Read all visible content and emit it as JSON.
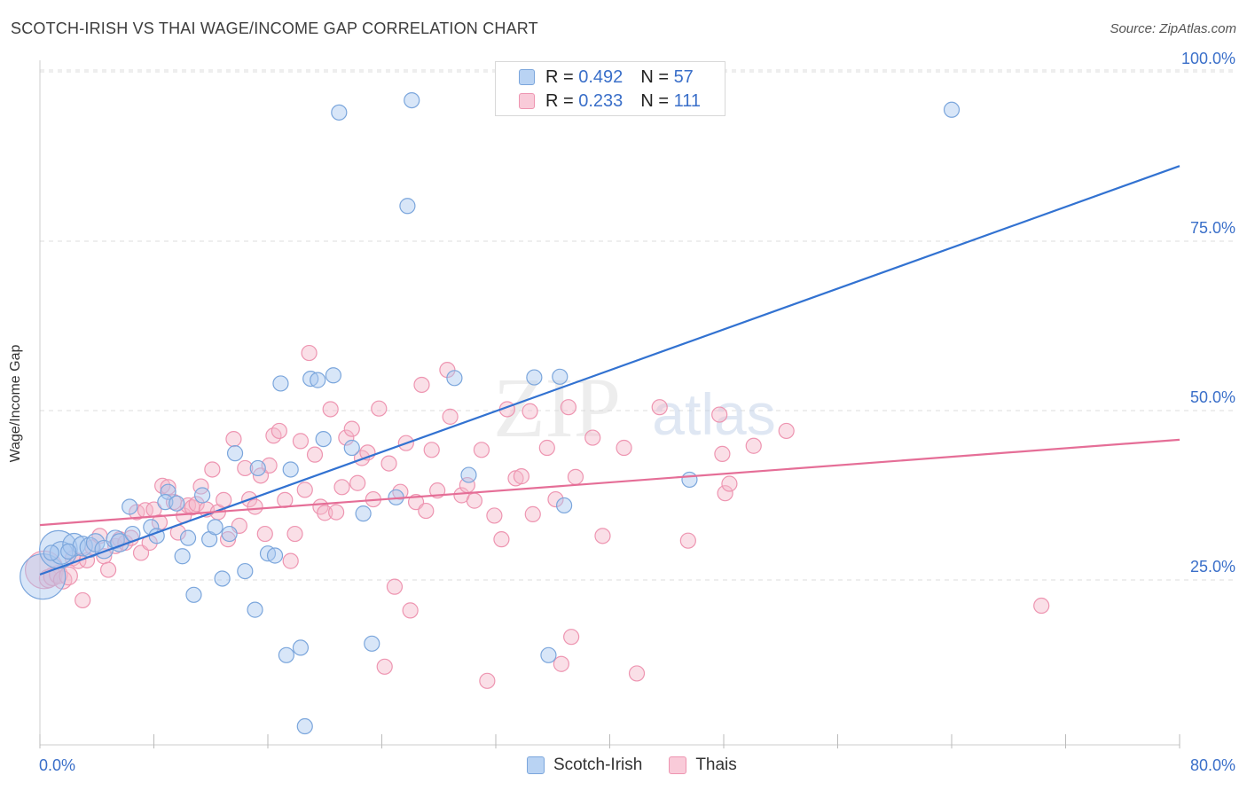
{
  "title": "SCOTCH-IRISH VS THAI WAGE/INCOME GAP CORRELATION CHART",
  "source": "Source: ZipAtlas.com",
  "colors": {
    "blue_fill": "#a9c8ef",
    "blue_stroke": "#7ba6dc",
    "blue_line": "#3272d1",
    "pink_fill": "#f5b7c9",
    "pink_stroke": "#ee95b1",
    "pink_line": "#e56e97",
    "grid": "#dcdcdc",
    "tick_text": "#3a6fc9"
  },
  "legend": {
    "rows": [
      {
        "r_label": "R = ",
        "r_value": "0.492",
        "n_label": "N = ",
        "n_value": "57"
      },
      {
        "r_label": "R = ",
        "r_value": "0.233",
        "n_label": "N = ",
        "n_value": "111"
      }
    ]
  },
  "bottom_legend": [
    "Scotch-Irish",
    "Thais"
  ],
  "watermark": {
    "zip": "ZIP",
    "atlas": "atlas"
  },
  "chart_data": {
    "type": "scatter",
    "title": "SCOTCH-IRISH VS THAI WAGE/INCOME GAP CORRELATION CHART",
    "xlabel": "",
    "ylabel": "Wage/Income Gap",
    "xlim": [
      0,
      80
    ],
    "ylim": [
      0,
      105
    ],
    "x_tick_labels": [
      "0.0%",
      "80.0%"
    ],
    "y_ticks": [
      25,
      50,
      75,
      100
    ],
    "y_tick_labels": [
      "25.0%",
      "50.0%",
      "75.0%",
      "100.0%"
    ],
    "grid": true,
    "legend_placement": "top-center",
    "series": [
      {
        "name": "Scotch-Irish",
        "color": "#a9c8ef",
        "R": 0.492,
        "N": 57,
        "trend": {
          "x": [
            0,
            80
          ],
          "y": [
            25.8,
            86.1
          ]
        },
        "points": [
          [
            0.2,
            25.5,
            3
          ],
          [
            1.3,
            29.5,
            2.5
          ],
          [
            1.5,
            29.0,
            1.5
          ],
          [
            2.4,
            30.2,
            1.5
          ],
          [
            3.0,
            30.0,
            1.3
          ],
          [
            3.5,
            29.8,
            1.3
          ],
          [
            3.9,
            30.5,
            1.2
          ],
          [
            4.5,
            29.5,
            1.2
          ],
          [
            5.3,
            31.0,
            1.2
          ],
          [
            5.6,
            30.5,
            1.2
          ],
          [
            6.5,
            31.8,
            1
          ],
          [
            6.3,
            35.8,
            1
          ],
          [
            7.8,
            32.8,
            1
          ],
          [
            8.2,
            31.5,
            1
          ],
          [
            9.0,
            38.0,
            1
          ],
          [
            8.8,
            36.5,
            1
          ],
          [
            9.6,
            36.3,
            1
          ],
          [
            10.0,
            28.5,
            1
          ],
          [
            10.4,
            31.2,
            1
          ],
          [
            10.8,
            22.8,
            1
          ],
          [
            11.4,
            37.5,
            1
          ],
          [
            11.9,
            31.0,
            1
          ],
          [
            12.3,
            32.8,
            1
          ],
          [
            12.8,
            25.2,
            1
          ],
          [
            13.3,
            31.8,
            1
          ],
          [
            13.7,
            43.7,
            1
          ],
          [
            14.4,
            26.3,
            1
          ],
          [
            15.1,
            20.6,
            1
          ],
          [
            15.3,
            41.5,
            1
          ],
          [
            16.0,
            28.9,
            1
          ],
          [
            16.5,
            28.6,
            1
          ],
          [
            16.9,
            54.0,
            1
          ],
          [
            17.3,
            13.9,
            1
          ],
          [
            17.6,
            41.3,
            1
          ],
          [
            18.3,
            15.0,
            1
          ],
          [
            18.6,
            3.4,
            1
          ],
          [
            19.0,
            54.7,
            1
          ],
          [
            19.5,
            54.5,
            1
          ],
          [
            19.9,
            45.8,
            1
          ],
          [
            20.6,
            55.2,
            1
          ],
          [
            21.0,
            94.0,
            1
          ],
          [
            21.9,
            44.5,
            1
          ],
          [
            22.7,
            34.8,
            1
          ],
          [
            23.3,
            15.6,
            1
          ],
          [
            25.0,
            37.2,
            1
          ],
          [
            25.8,
            80.2,
            1
          ],
          [
            26.1,
            95.8,
            1
          ],
          [
            29.1,
            54.8,
            1
          ],
          [
            30.1,
            40.5,
            1
          ],
          [
            34.7,
            54.9,
            1
          ],
          [
            35.7,
            13.9,
            1
          ],
          [
            36.5,
            55.0,
            1
          ],
          [
            36.8,
            36.0,
            1
          ],
          [
            45.6,
            39.8,
            1
          ],
          [
            64.0,
            94.4,
            1
          ],
          [
            0.8,
            29.0,
            1
          ],
          [
            2.0,
            29.2,
            1
          ]
        ]
      },
      {
        "name": "Thais",
        "color": "#f5b7c9",
        "R": 0.233,
        "N": 111,
        "trend": {
          "x": [
            0,
            80
          ],
          "y": [
            33.1,
            45.7
          ]
        },
        "points": [
          [
            0.3,
            26.5,
            2.5
          ],
          [
            0.6,
            25.2,
            1.2
          ],
          [
            0.9,
            25.5,
            1.2
          ],
          [
            1.3,
            25.8,
            1.2
          ],
          [
            1.6,
            25.0,
            1.2
          ],
          [
            2.0,
            25.6,
            1.2
          ],
          [
            2.3,
            28.2,
            1
          ],
          [
            2.7,
            27.8,
            1
          ],
          [
            3.0,
            22.0,
            1
          ],
          [
            3.3,
            27.9,
            1
          ],
          [
            3.7,
            29.8,
            1
          ],
          [
            4.2,
            31.5,
            1
          ],
          [
            4.5,
            28.5,
            1
          ],
          [
            4.8,
            26.5,
            1
          ],
          [
            5.3,
            30.0,
            1
          ],
          [
            5.6,
            31.0,
            1
          ],
          [
            6.0,
            30.5,
            1
          ],
          [
            6.4,
            31.2,
            1
          ],
          [
            6.8,
            35.0,
            1
          ],
          [
            7.1,
            29.0,
            1
          ],
          [
            7.4,
            35.3,
            1
          ],
          [
            7.7,
            30.5,
            1
          ],
          [
            8.0,
            35.4,
            1
          ],
          [
            8.4,
            33.5,
            1
          ],
          [
            8.6,
            38.9,
            1
          ],
          [
            9.0,
            38.7,
            1
          ],
          [
            9.4,
            36.5,
            1
          ],
          [
            9.7,
            32.0,
            1
          ],
          [
            10.1,
            34.5,
            1
          ],
          [
            10.4,
            36.0,
            1
          ],
          [
            10.7,
            35.7,
            1
          ],
          [
            11.0,
            36.2,
            1
          ],
          [
            11.3,
            38.8,
            1
          ],
          [
            11.7,
            35.4,
            1
          ],
          [
            12.1,
            41.3,
            1
          ],
          [
            12.5,
            35.0,
            1
          ],
          [
            12.9,
            36.8,
            1
          ],
          [
            13.2,
            31.0,
            1
          ],
          [
            13.6,
            45.8,
            1
          ],
          [
            14.0,
            33.0,
            1
          ],
          [
            14.4,
            41.5,
            1
          ],
          [
            14.7,
            36.9,
            1
          ],
          [
            15.1,
            35.8,
            1
          ],
          [
            15.5,
            40.4,
            1
          ],
          [
            15.8,
            31.8,
            1
          ],
          [
            16.1,
            41.9,
            1
          ],
          [
            16.4,
            46.3,
            1
          ],
          [
            16.8,
            47.0,
            1
          ],
          [
            17.2,
            36.8,
            1
          ],
          [
            17.6,
            27.8,
            1
          ],
          [
            17.9,
            31.8,
            1
          ],
          [
            18.3,
            45.5,
            1
          ],
          [
            18.6,
            38.3,
            1
          ],
          [
            18.9,
            58.5,
            1
          ],
          [
            19.3,
            43.5,
            1
          ],
          [
            19.7,
            35.8,
            1
          ],
          [
            20.0,
            34.9,
            1
          ],
          [
            20.4,
            50.2,
            1
          ],
          [
            20.8,
            35.0,
            1
          ],
          [
            21.2,
            38.7,
            1
          ],
          [
            21.5,
            46.0,
            1
          ],
          [
            21.9,
            47.3,
            1
          ],
          [
            22.3,
            39.3,
            1
          ],
          [
            22.6,
            43.0,
            1
          ],
          [
            23.0,
            43.8,
            1
          ],
          [
            23.4,
            36.9,
            1
          ],
          [
            23.8,
            50.3,
            1
          ],
          [
            24.2,
            12.2,
            1
          ],
          [
            24.5,
            42.2,
            1
          ],
          [
            24.9,
            24.0,
            1
          ],
          [
            25.3,
            38.0,
            1
          ],
          [
            25.7,
            45.2,
            1
          ],
          [
            26.0,
            20.5,
            1
          ],
          [
            26.4,
            36.5,
            1
          ],
          [
            26.8,
            53.8,
            1
          ],
          [
            27.1,
            35.2,
            1
          ],
          [
            27.5,
            44.2,
            1
          ],
          [
            27.9,
            38.2,
            1
          ],
          [
            28.6,
            56.0,
            1
          ],
          [
            28.8,
            49.1,
            1
          ],
          [
            29.6,
            37.5,
            1
          ],
          [
            30.0,
            39.0,
            1
          ],
          [
            30.5,
            36.7,
            1
          ],
          [
            31.0,
            44.2,
            1
          ],
          [
            31.4,
            10.1,
            1
          ],
          [
            31.9,
            34.5,
            1
          ],
          [
            32.4,
            31.0,
            1
          ],
          [
            32.8,
            50.2,
            1
          ],
          [
            33.4,
            40.0,
            1
          ],
          [
            33.8,
            40.3,
            1
          ],
          [
            34.4,
            49.9,
            1
          ],
          [
            34.6,
            34.7,
            1
          ],
          [
            35.6,
            44.5,
            1
          ],
          [
            36.2,
            36.9,
            1
          ],
          [
            36.6,
            12.6,
            1
          ],
          [
            37.1,
            50.5,
            1
          ],
          [
            37.3,
            16.6,
            1
          ],
          [
            37.6,
            40.2,
            1
          ],
          [
            38.8,
            46.0,
            1
          ],
          [
            39.5,
            31.5,
            1
          ],
          [
            41.0,
            44.5,
            1
          ],
          [
            41.9,
            11.2,
            1
          ],
          [
            43.5,
            50.5,
            1
          ],
          [
            45.5,
            30.8,
            1
          ],
          [
            47.7,
            49.4,
            1
          ],
          [
            47.9,
            43.6,
            1
          ],
          [
            48.1,
            37.8,
            1
          ],
          [
            48.4,
            39.2,
            1
          ],
          [
            50.1,
            44.8,
            1
          ],
          [
            52.4,
            47.0,
            1
          ],
          [
            70.3,
            21.2,
            1
          ]
        ]
      }
    ]
  }
}
